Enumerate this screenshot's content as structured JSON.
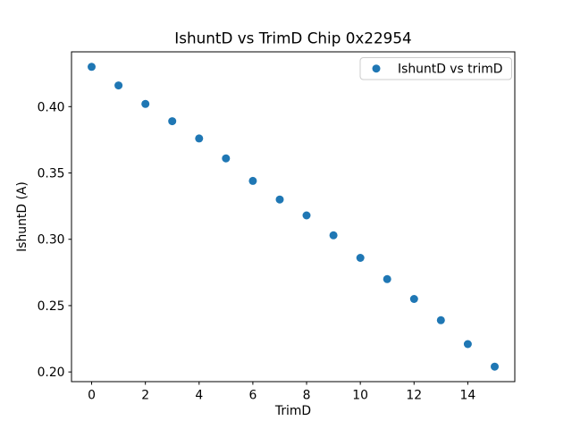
{
  "figure": {
    "background": "#ffffff"
  },
  "chart_data": {
    "type": "scatter",
    "title": "IshuntD vs TrimD Chip 0x22954",
    "xlabel": "TrimD",
    "ylabel": "IshuntD (A)",
    "legend": {
      "position": "upper right",
      "entries": [
        "IshuntD vs trimD"
      ]
    },
    "x": [
      0,
      1,
      2,
      3,
      4,
      5,
      6,
      7,
      8,
      9,
      10,
      11,
      12,
      13,
      14,
      15
    ],
    "y": [
      0.43,
      0.416,
      0.402,
      0.389,
      0.376,
      0.361,
      0.344,
      0.33,
      0.318,
      0.303,
      0.286,
      0.27,
      0.255,
      0.239,
      0.221,
      0.204
    ],
    "xlim": [
      -0.75,
      15.75
    ],
    "ylim": [
      0.1927,
      0.4413
    ],
    "x_ticks": [
      0,
      2,
      4,
      6,
      8,
      10,
      12,
      14
    ],
    "x_tick_labels": [
      "0",
      "2",
      "4",
      "6",
      "8",
      "10",
      "12",
      "14"
    ],
    "y_ticks": [
      0.2,
      0.25,
      0.3,
      0.35,
      0.4
    ],
    "y_tick_labels": [
      "0.20",
      "0.25",
      "0.30",
      "0.35",
      "0.40"
    ],
    "grid": false,
    "marker_color": "#1f77b4",
    "spine_color": "#000000",
    "legend_border_color": "#cccccc",
    "legend_background": "#ffffff"
  }
}
